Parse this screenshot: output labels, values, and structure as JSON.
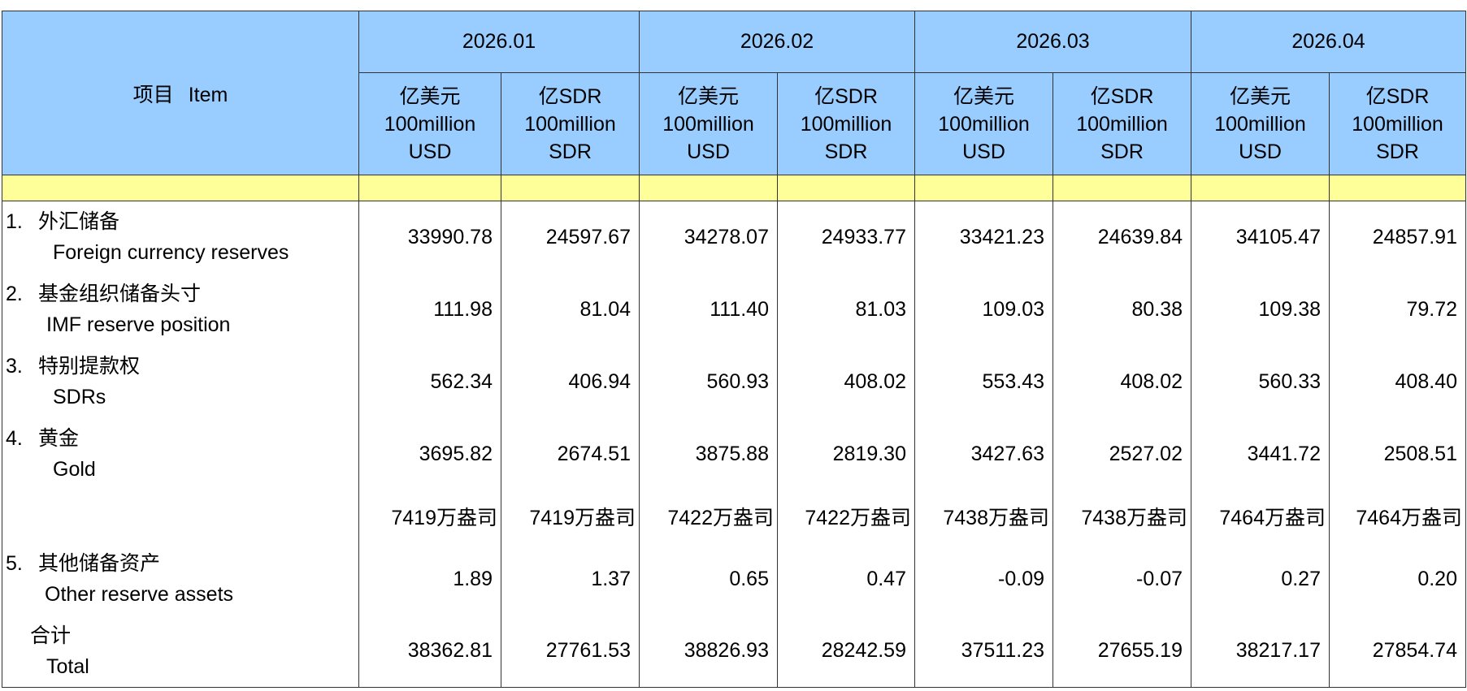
{
  "header": {
    "item_cn": "项目",
    "item_en": "Item",
    "months": [
      "2026.01",
      "2026.02",
      "2026.03",
      "2026.04"
    ],
    "unit_usd": [
      "亿美元",
      "100million",
      "USD"
    ],
    "unit_sdr": [
      "亿SDR",
      "100million",
      "SDR"
    ]
  },
  "rows": [
    {
      "num": "1.",
      "cn": "外汇储备",
      "en": "Foreign currency reserves",
      "values": [
        "33990.78",
        "24597.67",
        "34278.07",
        "24933.77",
        "33421.23",
        "24639.84",
        "34105.47",
        "24857.91"
      ]
    },
    {
      "num": "2.",
      "cn": "基金组织储备头寸",
      "en": "IMF reserve position",
      "values": [
        "111.98",
        "81.04",
        "111.40",
        "81.03",
        "109.03",
        "80.38",
        "109.38",
        "79.72"
      ]
    },
    {
      "num": "3.",
      "cn": "特别提款权",
      "en": "SDRs",
      "values": [
        "562.34",
        "406.94",
        "560.93",
        "408.02",
        "553.43",
        "408.02",
        "560.33",
        "408.40"
      ]
    },
    {
      "num": "4.",
      "cn": "黄金",
      "en": "Gold",
      "values": [
        "3695.82",
        "2674.51",
        "3875.88",
        "2819.30",
        "3427.63",
        "2527.02",
        "3441.72",
        "2508.51"
      ]
    },
    {
      "num": "",
      "cn": "",
      "en": "",
      "values": [
        "7419万盎司",
        "7419万盎司",
        "7422万盎司",
        "7422万盎司",
        "7438万盎司",
        "7438万盎司",
        "7464万盎司",
        "7464万盎司"
      ]
    },
    {
      "num": "5.",
      "cn": "其他储备资产",
      "en": "Other reserve assets",
      "values": [
        "1.89",
        "1.37",
        "0.65",
        "0.47",
        "-0.09",
        "-0.07",
        "0.27",
        "0.20"
      ]
    },
    {
      "num": "",
      "cn": "合计",
      "en": "Total",
      "values": [
        "38362.81",
        "27761.53",
        "38826.93",
        "28242.59",
        "37511.23",
        "27655.19",
        "38217.17",
        "27854.74"
      ]
    }
  ],
  "colors": {
    "header_bg": "#99ccff",
    "band_bg": "#ffff99",
    "border": "#333333"
  }
}
